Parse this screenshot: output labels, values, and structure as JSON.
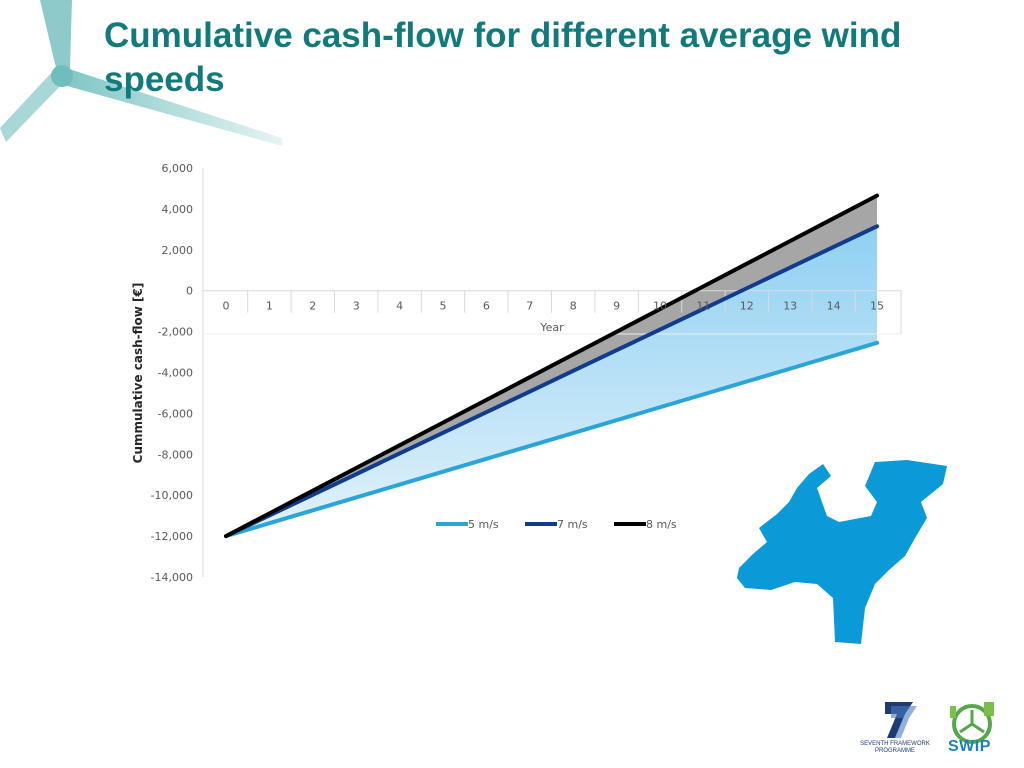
{
  "slide": {
    "title": "Cumulative cash-flow for different average wind speeds"
  },
  "colors": {
    "title": "#117a7a",
    "series_5": "#2aa4d9",
    "series_7": "#103b8e",
    "series_8": "#000000",
    "map": "#0a9ad7"
  },
  "logos": {
    "fp7_caption": "SEVENTH FRAMEWORK PROGRAMME",
    "swip": "SWIP"
  },
  "chart_data": {
    "type": "line",
    "xlabel": "Year",
    "ylabel": "Cummulative cash-flow [€]",
    "x": [
      0,
      1,
      2,
      3,
      4,
      5,
      6,
      7,
      8,
      9,
      10,
      11,
      12,
      13,
      14,
      15
    ],
    "ylim": [
      -14000,
      6000
    ],
    "yticks": [
      6000,
      4000,
      2000,
      0,
      -2000,
      -4000,
      -6000,
      -8000,
      -10000,
      -12000,
      -14000
    ],
    "ytick_labels": [
      "6,000",
      "4,000",
      "2,000",
      "0",
      "-2,000",
      "-4,000",
      "-6,000",
      "-8,000",
      "-10,000",
      "-12,000",
      "-14,000"
    ],
    "legend_position": "inside, lower right",
    "grid": false,
    "shaded_area_between_series": true,
    "series": [
      {
        "name": "5 m/s",
        "values": [
          -12000,
          -11370,
          -10740,
          -10110,
          -9480,
          -8850,
          -8220,
          -7590,
          -6960,
          -6330,
          -5700,
          -5070,
          -4440,
          -3810,
          -3180,
          -2550
        ]
      },
      {
        "name": "7 m/s",
        "values": [
          -12000,
          -10990,
          -9980,
          -8970,
          -7960,
          -6950,
          -5940,
          -4930,
          -3920,
          -2910,
          -1900,
          -890,
          120,
          1130,
          2140,
          3150
        ]
      },
      {
        "name": "8 m/s",
        "values": [
          -12000,
          -10890,
          -9780,
          -8670,
          -7560,
          -6450,
          -5340,
          -4230,
          -3120,
          -2010,
          -900,
          210,
          1320,
          2430,
          3540,
          4650
        ]
      }
    ]
  }
}
